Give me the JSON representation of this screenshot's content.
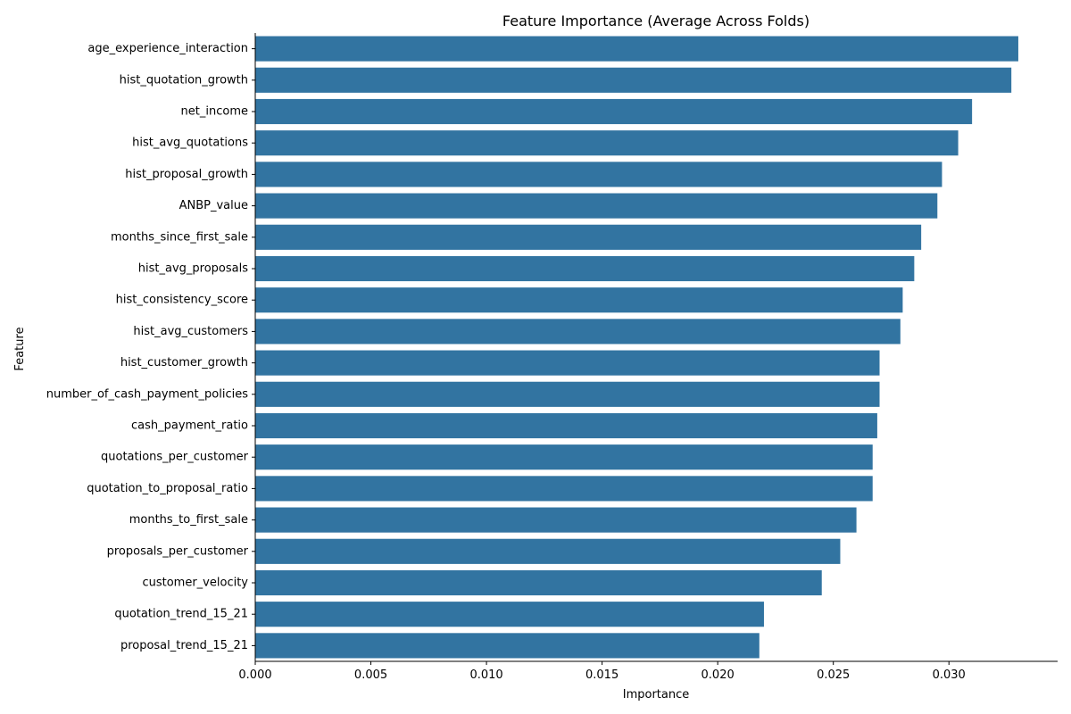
{
  "chart_data": {
    "type": "bar",
    "orientation": "horizontal",
    "title": "Feature Importance (Average Across Folds)",
    "xlabel": "Importance",
    "ylabel": "Feature",
    "xlim": [
      0,
      0.0347
    ],
    "xticks": [
      "0.000",
      "0.005",
      "0.010",
      "0.015",
      "0.020",
      "0.025",
      "0.030"
    ],
    "grid": false,
    "bar_color": "#3274a1",
    "categories": [
      "age_experience_interaction",
      "hist_quotation_growth",
      "net_income",
      "hist_avg_quotations",
      "hist_proposal_growth",
      "ANBP_value",
      "months_since_first_sale",
      "hist_avg_proposals",
      "hist_consistency_score",
      "hist_avg_customers",
      "hist_customer_growth",
      "number_of_cash_payment_policies",
      "cash_payment_ratio",
      "quotations_per_customer",
      "quotation_to_proposal_ratio",
      "months_to_first_sale",
      "proposals_per_customer",
      "customer_velocity",
      "quotation_trend_15_21",
      "proposal_trend_15_21"
    ],
    "values": [
      0.033,
      0.0327,
      0.031,
      0.0304,
      0.0297,
      0.0295,
      0.0288,
      0.0285,
      0.028,
      0.0279,
      0.027,
      0.027,
      0.0269,
      0.0267,
      0.0267,
      0.026,
      0.0253,
      0.0245,
      0.022,
      0.0218
    ]
  }
}
